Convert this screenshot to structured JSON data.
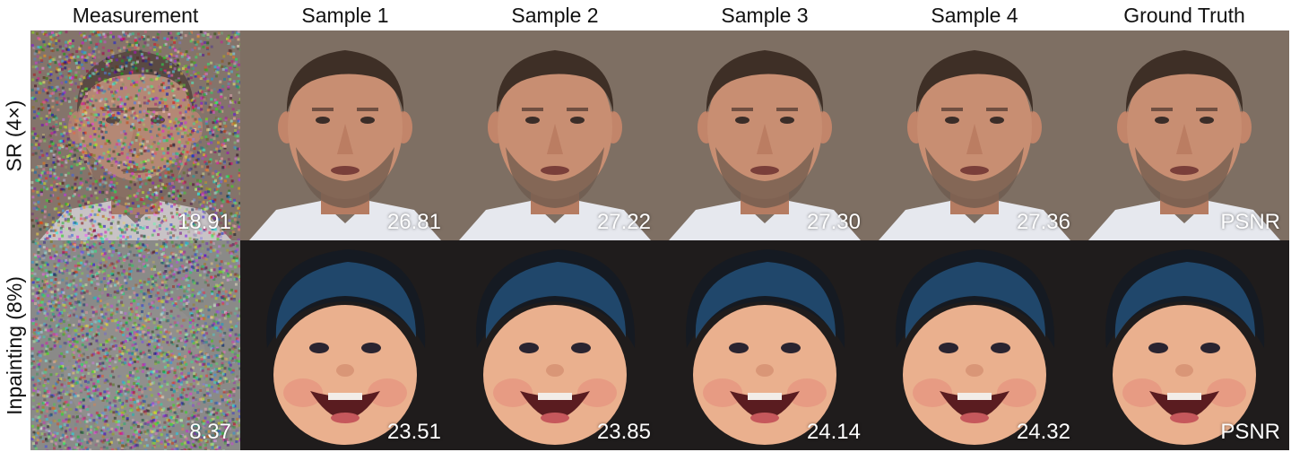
{
  "columns": [
    {
      "id": "measurement",
      "label": "Measurement"
    },
    {
      "id": "sample-1",
      "label": "Sample 1"
    },
    {
      "id": "sample-2",
      "label": "Sample 2"
    },
    {
      "id": "sample-3",
      "label": "Sample 3"
    },
    {
      "id": "sample-4",
      "label": "Sample 4"
    },
    {
      "id": "ground-truth",
      "label": "Ground Truth"
    }
  ],
  "rows": [
    {
      "id": "sr",
      "label": "SR (4×)",
      "subject": "man",
      "values": [
        "18.91",
        "26.81",
        "27.22",
        "27.30",
        "27.36",
        "PSNR"
      ]
    },
    {
      "id": "inpainting",
      "label": "Inpainting (8%)",
      "subject": "child",
      "values": [
        "8.37",
        "23.51",
        "23.85",
        "24.14",
        "24.32",
        "PSNR"
      ]
    }
  ],
  "colors": {
    "man_background": "#8a7a6c",
    "man_skin": "#c88e72",
    "man_hair": "#3e2f26",
    "man_shirt": "#e6e8ee",
    "child_background": "#1f1c1c",
    "child_skin": "#eab08e",
    "child_hat": "#2a6ea8",
    "child_hat_dark": "#151a22",
    "noise_sr": "#8e7f7a",
    "noise_inpaint": "#8a8a88"
  }
}
